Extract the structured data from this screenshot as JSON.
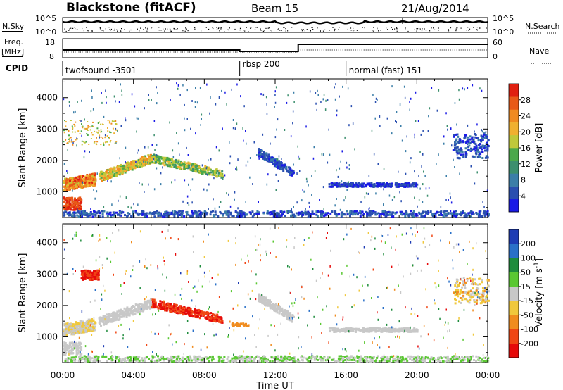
{
  "header": {
    "title": "Blackstone (fitACF)",
    "beam": "Beam 15",
    "date": "21/Aug/2014"
  },
  "top_panels": {
    "nsky_label": "N.Sky",
    "nsearch_label": "N.Search",
    "freq_label": "Freq.",
    "freq_unit": "[MHz]",
    "nave_label": "Nave",
    "cpid_label": "CPID",
    "noise_ticks_left": [
      "10^5",
      "10^0"
    ],
    "noise_ticks_right": [
      "10^5",
      "10^0"
    ],
    "freq_ticks": [
      "18",
      "8"
    ],
    "nave_ticks": [
      "60",
      "0"
    ],
    "cpid_segments": [
      {
        "label": "twofsound -3501",
        "start_hour": 0
      },
      {
        "label": "rbsp 200",
        "start_hour": 10
      },
      {
        "label": "normal (fast) 151",
        "start_hour": 16
      }
    ]
  },
  "chart_data": [
    {
      "type": "heatmap",
      "title": "Power",
      "xlabel": "Time UT",
      "ylabel": "Slant Range [km]",
      "xlim_hours": [
        0,
        24
      ],
      "ylim_km": [
        180,
        4600
      ],
      "x_ticks": [
        "00:00",
        "04:00",
        "08:00",
        "12:00",
        "16:00",
        "20:00",
        "00:00"
      ],
      "y_ticks": [
        "1000",
        "2000",
        "3000",
        "4000"
      ],
      "colorbar": {
        "label": "Power [dB]",
        "ticks": [
          "4",
          "8",
          "12",
          "16",
          "20",
          "24",
          "28"
        ],
        "colors": [
          "#1a1ae6",
          "#2a4fb0",
          "#3b7ea8",
          "#3c8f6e",
          "#4aa84a",
          "#bfc83a",
          "#f0b030",
          "#f08a20",
          "#e85a18",
          "#e02010"
        ]
      }
    },
    {
      "type": "heatmap",
      "title": "Velocity",
      "xlabel": "Time UT",
      "ylabel": "Slant Range [km]",
      "xlim_hours": [
        0,
        24
      ],
      "ylim_km": [
        180,
        4600
      ],
      "x_ticks": [
        "00:00",
        "04:00",
        "08:00",
        "12:00",
        "16:00",
        "20:00",
        "00:00"
      ],
      "y_ticks": [
        "1000",
        "2000",
        "3000",
        "4000"
      ],
      "colorbar": {
        "label": "Velocity [m s",
        "label_sup": "-1",
        "label_end": "]",
        "ticks": [
          "200",
          "100",
          "50",
          "15",
          "-15",
          "-50",
          "-100",
          "-200"
        ],
        "colors": [
          "#1e3cb4",
          "#2a70c8",
          "#1e8c3c",
          "#5ac832",
          "#c8c8c8",
          "#f0c83c",
          "#f08c1e",
          "#f04614",
          "#e60a0a"
        ]
      }
    }
  ]
}
